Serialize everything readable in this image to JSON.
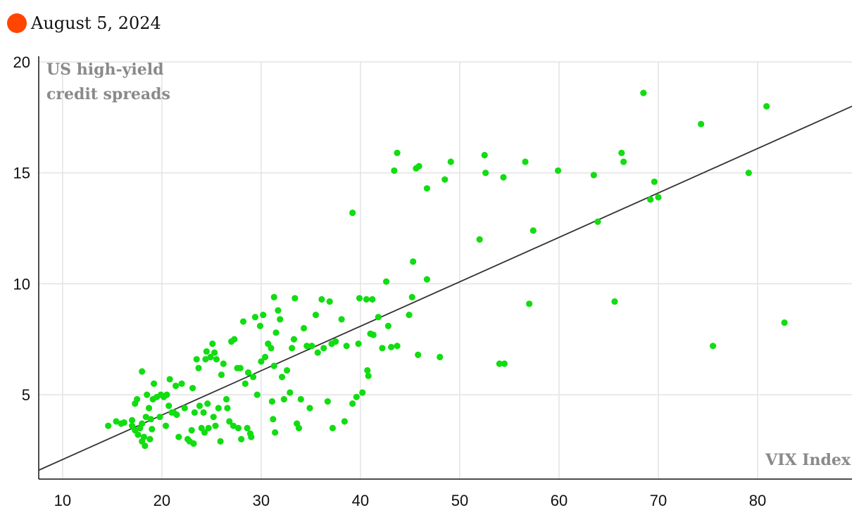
{
  "legend": {
    "label": "August 5, 2024",
    "marker_color": "#ff4500"
  },
  "colors": {
    "points": "#11dd11",
    "trendline": "#333333",
    "grid": "#e3e3e3",
    "axis": "#111111",
    "axis_title": "#8a8a8a"
  },
  "chart_data": {
    "type": "scatter",
    "title": "",
    "xlabel": "VIX Index",
    "ylabel_lines": [
      "US high-yield",
      "credit spreads"
    ],
    "xlim": [
      7.6,
      89.5
    ],
    "ylim": [
      1.2,
      20
    ],
    "x_ticks": [
      10,
      20,
      30,
      40,
      50,
      60,
      70,
      80
    ],
    "y_ticks": [
      5,
      10,
      15,
      20
    ],
    "grid": true,
    "legend_position": "top-left",
    "trendline": {
      "x": [
        7.6,
        89.5
      ],
      "y": [
        1.6,
        18.0
      ]
    },
    "points": [
      [
        14.6,
        3.6
      ],
      [
        15.4,
        3.8
      ],
      [
        15.9,
        3.7
      ],
      [
        16.2,
        3.75
      ],
      [
        17.0,
        3.85
      ],
      [
        17.0,
        3.6
      ],
      [
        17.3,
        3.4
      ],
      [
        17.3,
        4.6
      ],
      [
        17.5,
        4.8
      ],
      [
        17.6,
        3.2
      ],
      [
        17.8,
        3.5
      ],
      [
        18.0,
        6.05
      ],
      [
        18.0,
        3.7
      ],
      [
        18.0,
        2.9
      ],
      [
        18.2,
        3.1
      ],
      [
        18.3,
        2.7
      ],
      [
        18.4,
        4.0
      ],
      [
        18.5,
        5.0
      ],
      [
        18.7,
        4.4
      ],
      [
        18.8,
        3.0
      ],
      [
        18.9,
        3.9
      ],
      [
        19.0,
        3.45
      ],
      [
        19.1,
        4.8
      ],
      [
        19.2,
        5.5
      ],
      [
        19.5,
        4.9
      ],
      [
        19.8,
        4.0
      ],
      [
        19.9,
        5.0
      ],
      [
        20.2,
        4.9
      ],
      [
        20.4,
        3.6
      ],
      [
        20.5,
        5.0
      ],
      [
        20.7,
        4.5
      ],
      [
        20.8,
        5.7
      ],
      [
        21.0,
        4.2
      ],
      [
        21.2,
        4.2
      ],
      [
        21.4,
        5.4
      ],
      [
        21.5,
        4.1
      ],
      [
        21.7,
        3.1
      ],
      [
        22.0,
        5.5
      ],
      [
        22.3,
        4.4
      ],
      [
        22.6,
        3.0
      ],
      [
        22.8,
        2.9
      ],
      [
        23.0,
        3.4
      ],
      [
        23.2,
        2.8
      ],
      [
        23.1,
        5.3
      ],
      [
        23.3,
        4.2
      ],
      [
        23.5,
        6.6
      ],
      [
        23.7,
        6.2
      ],
      [
        23.8,
        4.5
      ],
      [
        24.0,
        3.5
      ],
      [
        24.2,
        4.2
      ],
      [
        24.3,
        3.3
      ],
      [
        24.4,
        6.6
      ],
      [
        24.5,
        6.95
      ],
      [
        24.6,
        4.6
      ],
      [
        24.7,
        3.5
      ],
      [
        24.9,
        6.7
      ],
      [
        25.1,
        7.3
      ],
      [
        25.2,
        4.0
      ],
      [
        25.3,
        6.9
      ],
      [
        25.4,
        3.6
      ],
      [
        25.5,
        6.6
      ],
      [
        25.7,
        4.4
      ],
      [
        25.9,
        2.9
      ],
      [
        26.0,
        5.9
      ],
      [
        26.2,
        6.4
      ],
      [
        26.5,
        4.8
      ],
      [
        26.6,
        4.4
      ],
      [
        26.8,
        3.8
      ],
      [
        27.0,
        7.4
      ],
      [
        27.2,
        3.6
      ],
      [
        27.3,
        7.5
      ],
      [
        27.6,
        6.2
      ],
      [
        27.7,
        3.5
      ],
      [
        27.9,
        6.2
      ],
      [
        28.0,
        3.0
      ],
      [
        28.2,
        8.3
      ],
      [
        28.4,
        5.5
      ],
      [
        28.6,
        3.5
      ],
      [
        28.7,
        6.0
      ],
      [
        28.9,
        3.25
      ],
      [
        29.0,
        3.1
      ],
      [
        29.2,
        5.8
      ],
      [
        29.4,
        8.5
      ],
      [
        29.6,
        5.0
      ],
      [
        29.9,
        8.1
      ],
      [
        30.2,
        8.6
      ],
      [
        30.0,
        6.5
      ],
      [
        30.4,
        6.7
      ],
      [
        30.7,
        7.3
      ],
      [
        31.0,
        7.1
      ],
      [
        31.1,
        4.7
      ],
      [
        31.2,
        3.9
      ],
      [
        31.3,
        6.3
      ],
      [
        31.5,
        7.8
      ],
      [
        31.7,
        8.8
      ],
      [
        31.9,
        8.4
      ],
      [
        31.3,
        9.4
      ],
      [
        31.4,
        3.3
      ],
      [
        32.1,
        5.8
      ],
      [
        32.3,
        4.8
      ],
      [
        32.6,
        6.1
      ],
      [
        32.9,
        5.1
      ],
      [
        33.1,
        7.1
      ],
      [
        33.3,
        7.5
      ],
      [
        33.4,
        9.35
      ],
      [
        33.6,
        3.7
      ],
      [
        33.8,
        3.5
      ],
      [
        34.0,
        4.8
      ],
      [
        34.3,
        8.0
      ],
      [
        34.6,
        7.2
      ],
      [
        34.9,
        4.4
      ],
      [
        35.1,
        7.2
      ],
      [
        35.5,
        8.6
      ],
      [
        35.7,
        6.9
      ],
      [
        36.1,
        9.3
      ],
      [
        36.3,
        7.1
      ],
      [
        36.7,
        4.7
      ],
      [
        36.9,
        9.2
      ],
      [
        37.1,
        7.3
      ],
      [
        37.2,
        3.5
      ],
      [
        37.5,
        7.4
      ],
      [
        38.1,
        8.4
      ],
      [
        38.4,
        3.8
      ],
      [
        38.6,
        7.2
      ],
      [
        39.2,
        13.2
      ],
      [
        39.2,
        4.6
      ],
      [
        39.6,
        4.9
      ],
      [
        39.8,
        7.3
      ],
      [
        39.9,
        9.35
      ],
      [
        40.2,
        5.1
      ],
      [
        40.6,
        9.3
      ],
      [
        40.7,
        6.1
      ],
      [
        40.8,
        5.85
      ],
      [
        41.0,
        7.75
      ],
      [
        41.2,
        9.3
      ],
      [
        41.3,
        7.7
      ],
      [
        41.8,
        8.5
      ],
      [
        42.2,
        7.1
      ],
      [
        42.6,
        10.1
      ],
      [
        42.8,
        8.1
      ],
      [
        43.1,
        7.15
      ],
      [
        43.4,
        15.1
      ],
      [
        43.7,
        15.9
      ],
      [
        43.7,
        7.2
      ],
      [
        44.9,
        8.6
      ],
      [
        45.2,
        9.4
      ],
      [
        45.3,
        11.0
      ],
      [
        45.6,
        15.2
      ],
      [
        45.8,
        6.8
      ],
      [
        45.9,
        15.3
      ],
      [
        46.7,
        10.2
      ],
      [
        46.7,
        14.3
      ],
      [
        48.0,
        6.7
      ],
      [
        48.5,
        14.7
      ],
      [
        49.1,
        15.5
      ],
      [
        52.0,
        12.0
      ],
      [
        52.5,
        15.8
      ],
      [
        52.6,
        15.0
      ],
      [
        54.0,
        6.4
      ],
      [
        54.4,
        14.8
      ],
      [
        54.5,
        6.4
      ],
      [
        56.6,
        15.5
      ],
      [
        57.0,
        9.1
      ],
      [
        57.4,
        12.4
      ],
      [
        59.9,
        15.1
      ],
      [
        63.5,
        14.9
      ],
      [
        63.9,
        12.8
      ],
      [
        65.6,
        9.2
      ],
      [
        66.3,
        15.9
      ],
      [
        66.5,
        15.5
      ],
      [
        68.5,
        18.6
      ],
      [
        69.2,
        13.8
      ],
      [
        69.6,
        14.6
      ],
      [
        70.0,
        13.9
      ],
      [
        74.3,
        17.2
      ],
      [
        75.5,
        7.2
      ],
      [
        79.1,
        15.0
      ],
      [
        80.9,
        18.0
      ],
      [
        82.7,
        8.25
      ]
    ]
  }
}
